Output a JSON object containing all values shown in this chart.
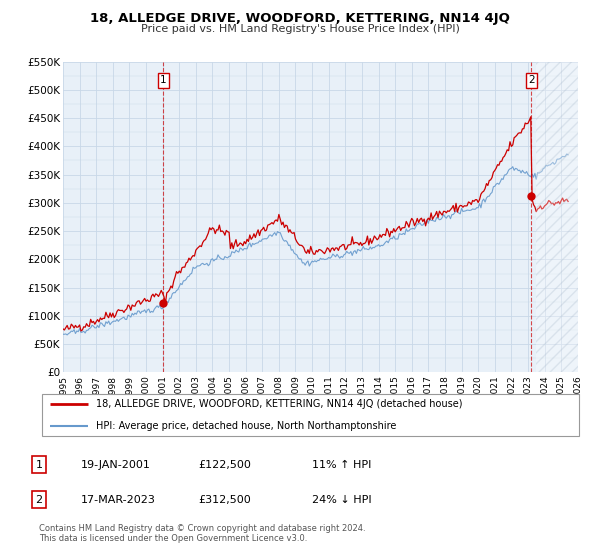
{
  "title": "18, ALLEDGE DRIVE, WOODFORD, KETTERING, NN14 4JQ",
  "subtitle": "Price paid vs. HM Land Registry's House Price Index (HPI)",
  "legend_label1": "18, ALLEDGE DRIVE, WOODFORD, KETTERING, NN14 4JQ (detached house)",
  "legend_label2": "HPI: Average price, detached house, North Northamptonshire",
  "footnote1": "Contains HM Land Registry data © Crown copyright and database right 2024.",
  "footnote2": "This data is licensed under the Open Government Licence v3.0.",
  "sale1_label": "1",
  "sale1_date": "19-JAN-2001",
  "sale1_price": "£122,500",
  "sale1_hpi": "11% ↑ HPI",
  "sale2_label": "2",
  "sale2_date": "17-MAR-2023",
  "sale2_price": "£312,500",
  "sale2_hpi": "24% ↓ HPI",
  "color_red": "#cc0000",
  "color_blue": "#6699cc",
  "color_grid": "#c8d8e8",
  "color_bg": "#e8f0f8",
  "ylim": [
    0,
    550000
  ],
  "yticks": [
    0,
    50000,
    100000,
    150000,
    200000,
    250000,
    300000,
    350000,
    400000,
    450000,
    500000,
    550000
  ],
  "ytick_labels": [
    "£0",
    "£50K",
    "£100K",
    "£150K",
    "£200K",
    "£250K",
    "£300K",
    "£350K",
    "£400K",
    "£450K",
    "£500K",
    "£550K"
  ],
  "sale1_x": 2001.05,
  "sale1_y": 122500,
  "sale2_x": 2023.21,
  "sale2_y": 312500,
  "xlim_start": 1995,
  "xlim_end": 2026
}
